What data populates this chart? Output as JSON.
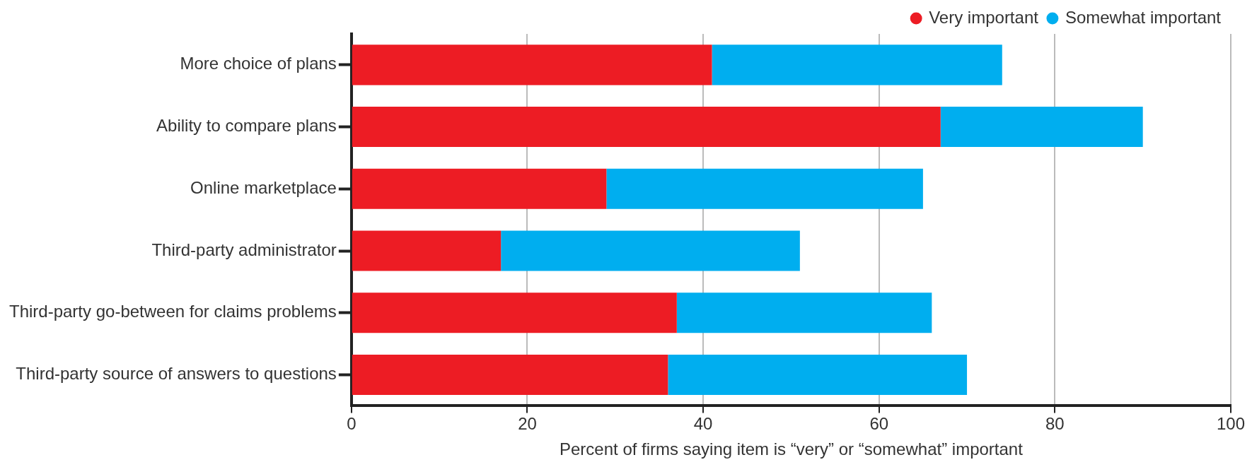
{
  "chart_data": {
    "type": "bar",
    "orientation": "horizontal",
    "stacked": true,
    "categories": [
      "More choice of plans",
      "Ability to compare plans",
      "Online marketplace",
      "Third-party administrator",
      "Third-party go-between for claims problems",
      "Third-party source of answers to questions"
    ],
    "series": [
      {
        "name": "Very important",
        "color": "#ed1c24",
        "values": [
          41,
          67,
          29,
          17,
          37,
          36
        ]
      },
      {
        "name": "Somewhat important",
        "color": "#00aeef",
        "values": [
          33,
          23,
          36,
          34,
          29,
          34
        ]
      }
    ],
    "xlabel": "Percent of firms saying item is “very” or “somewhat” important",
    "xlim": [
      0,
      100
    ],
    "xticks": [
      0,
      20,
      40,
      60,
      80,
      100
    ],
    "grid": "x",
    "legend": "top right"
  }
}
